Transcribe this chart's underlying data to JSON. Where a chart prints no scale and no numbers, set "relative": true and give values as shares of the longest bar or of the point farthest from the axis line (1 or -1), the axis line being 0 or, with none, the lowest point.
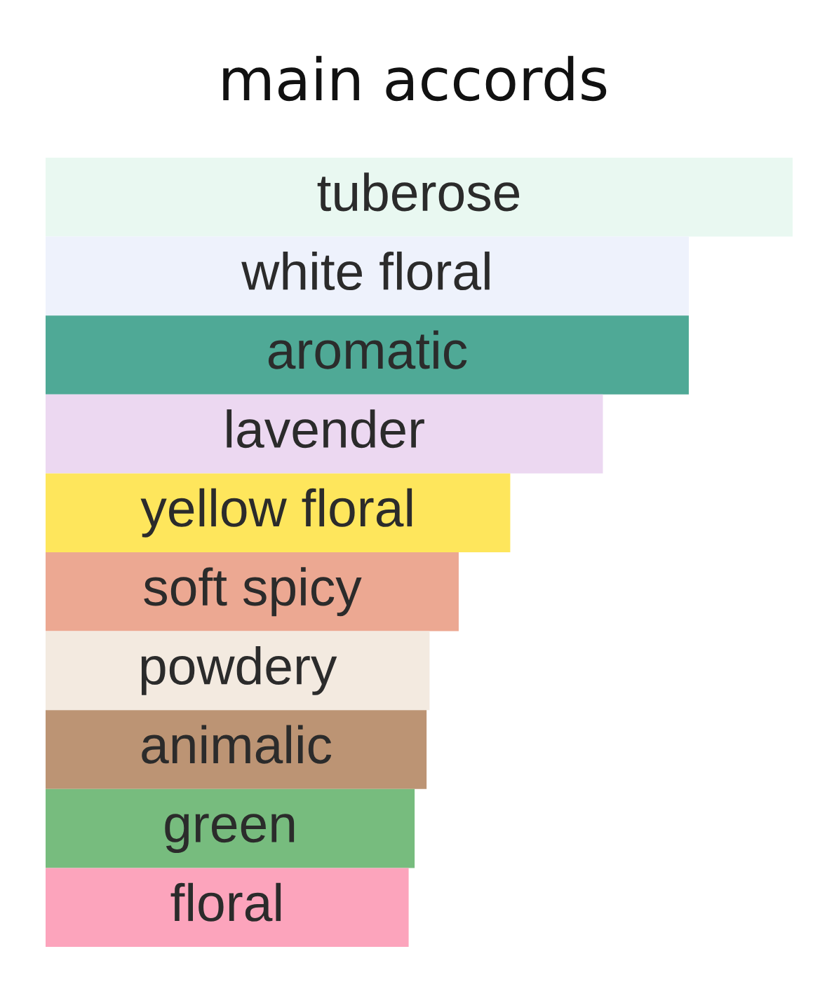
{
  "chart_data": {
    "type": "bar",
    "orientation": "horizontal",
    "relative": true,
    "title": "main accords",
    "categories": [
      "tuberose",
      "white floral",
      "aromatic",
      "lavender",
      "yellow floral",
      "soft spicy",
      "powdery",
      "animalic",
      "green",
      "floral"
    ],
    "values": [
      1,
      0.861,
      0.861,
      0.746,
      0.622,
      0.553,
      0.514,
      0.51,
      0.494,
      0.486
    ],
    "colors": [
      "#e9f8f1",
      "#eef2fc",
      "#4fa996",
      "#ecd8f1",
      "#fee65c",
      "#eca892",
      "#f3eae0",
      "#bc9474",
      "#77bc7e",
      "#fca4bc"
    ]
  }
}
